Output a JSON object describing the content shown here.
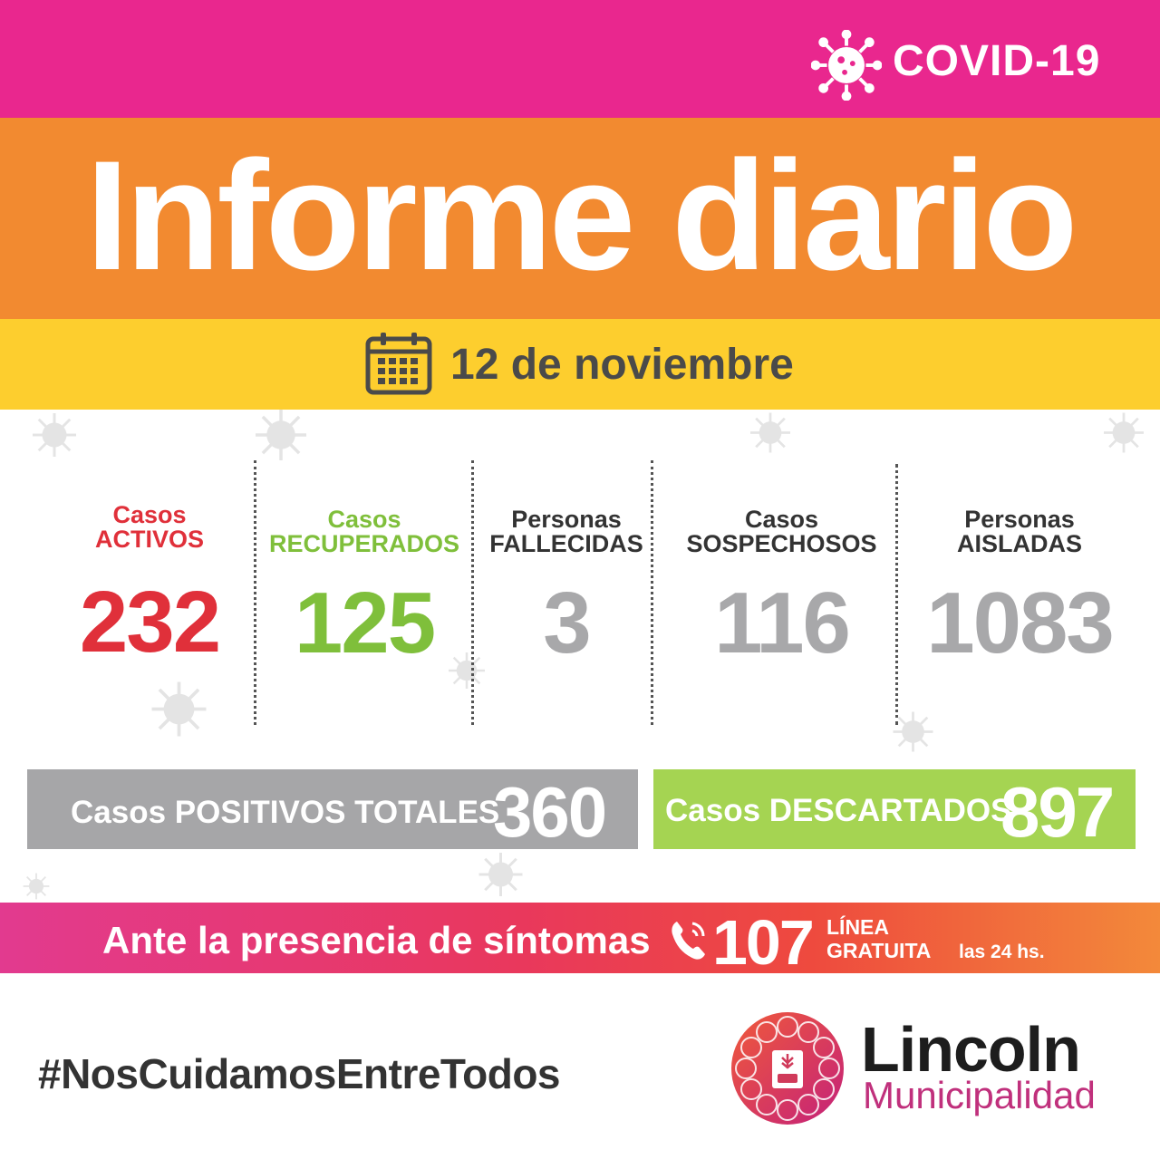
{
  "header": {
    "covid_label": "COVID-19",
    "title": "Informe diario",
    "date": "12 de noviembre"
  },
  "stats": [
    {
      "line1": "Casos",
      "line2": "ACTIVOS",
      "value": "232",
      "color": "#e0303a"
    },
    {
      "line1": "Casos",
      "line2": "RECUPERADOS",
      "value": "125",
      "color": "#7fbf3b"
    },
    {
      "line1": "Personas",
      "line2": "FALLECIDAS",
      "value": "3",
      "color": "#a8a8aa"
    },
    {
      "line1": "Casos",
      "line2": "SOSPECHOSOS",
      "value": "116",
      "color": "#a8a8aa"
    },
    {
      "line1": "Personas",
      "line2": "AISLADAS",
      "value": "1083",
      "color": "#a8a8aa"
    }
  ],
  "totals": {
    "positivos_label": "Casos POSITIVOS TOTALES",
    "positivos_value": "360",
    "descartados_label": "Casos DESCARTADOS",
    "descartados_value": "897"
  },
  "helpline": {
    "text": "Ante la presencia de síntomas",
    "number": "107",
    "line1": "LÍNEA",
    "line2": "GRATUITA",
    "hours": "las 24 hs."
  },
  "footer": {
    "hashtag": "#NosCuidamosEntreTodos",
    "brand": "Lincoln",
    "sub": "Municipalidad"
  },
  "colors": {
    "magenta": "#e9278e",
    "orange": "#f28a30",
    "yellow": "#fdce2e",
    "red": "#e0303a",
    "green": "#7fbf3b",
    "gray": "#a8a8aa",
    "lime": "#a5d452"
  },
  "icons": [
    "virus-icon",
    "calendar-icon",
    "phone-icon",
    "lincoln-logo-icon"
  ]
}
